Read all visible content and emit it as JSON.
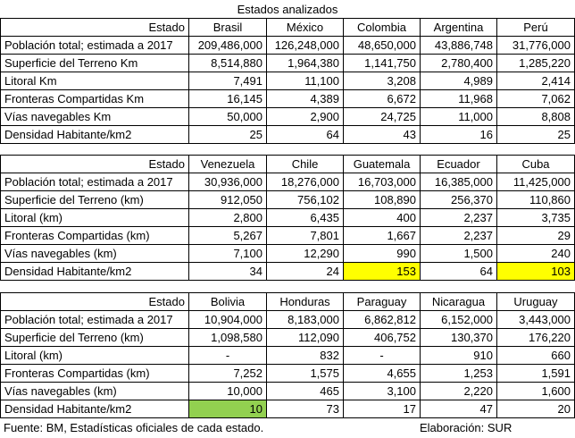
{
  "title": "Estados analizados",
  "blocks": [
    {
      "state_label": "Estado",
      "countries": [
        "Brasil",
        "México",
        "Colombia",
        "Argentina",
        "Perú"
      ],
      "rows": [
        {
          "label": "Población total; estimada a 2017",
          "values": [
            "209,486,000",
            "126,248,000",
            "48,650,000",
            "43,886,748",
            "31,776,000"
          ]
        },
        {
          "label": "Superficie del Terreno Km",
          "values": [
            "8,514,880",
            "1,964,380",
            "1,141,750",
            "2,780,400",
            "1,285,220"
          ]
        },
        {
          "label": "Litoral Km",
          "values": [
            "7,491",
            "11,100",
            "3,208",
            "4,989",
            "2,414"
          ]
        },
        {
          "label": "Fronteras Compartidas Km",
          "values": [
            "16,145",
            "4,389",
            "6,672",
            "11,968",
            "7,062"
          ]
        },
        {
          "label": "Vías navegables Km",
          "values": [
            "50,000",
            "2,900",
            "24,725",
            "11,000",
            "8,808"
          ]
        },
        {
          "label": "Densidad Habitante/km2",
          "values": [
            "25",
            "64",
            "43",
            "16",
            "25"
          ]
        }
      ]
    },
    {
      "state_label": "Estado",
      "countries": [
        "Venezuela",
        "Chile",
        "Guatemala",
        "Ecuador",
        "Cuba"
      ],
      "rows": [
        {
          "label": "Población total; estimada a 2017",
          "values": [
            "30,936,000",
            "18,276,000",
            "16,703,000",
            "16,385,000",
            "11,425,000"
          ]
        },
        {
          "label": "Superficie del Terreno (km)",
          "values": [
            "912,050",
            "756,102",
            "108,890",
            "256,370",
            "110,860"
          ]
        },
        {
          "label": "Litoral (km)",
          "values": [
            "2,800",
            "6,435",
            "400",
            "2,237",
            "3,735"
          ]
        },
        {
          "label": "Fronteras Compartidas (km)",
          "values": [
            "5,267",
            "7,801",
            "1,667",
            "2,237",
            "29"
          ]
        },
        {
          "label": "Vías navegables (km)",
          "values": [
            "7,100",
            "12,290",
            "990",
            "1,500",
            "240"
          ]
        },
        {
          "label": "Densidad Habitante/km2",
          "values": [
            "34",
            "24",
            "153",
            "64",
            "103"
          ]
        }
      ]
    },
    {
      "state_label": "Estado",
      "countries": [
        "Bolivia",
        "Honduras",
        "Paraguay",
        "Nicaragua",
        "Uruguay"
      ],
      "rows": [
        {
          "label": "Población total; estimada a 2017",
          "values": [
            "10,904,000",
            "8,183,000",
            "6,862,812",
            "6,152,000",
            "3,443,000"
          ]
        },
        {
          "label": "Superficie del Terreno (km)",
          "values": [
            "1,098,580",
            "112,090",
            "406,752",
            "130,370",
            "176,220"
          ]
        },
        {
          "label": "Litoral (km)",
          "values": [
            "-",
            "832",
            "-",
            "910",
            "660"
          ]
        },
        {
          "label": "Fronteras Compartidas (km)",
          "values": [
            "7,252",
            "1,575",
            "4,655",
            "1,253",
            "1,591"
          ]
        },
        {
          "label": "Vías navegables (km)",
          "values": [
            "10,000",
            "465",
            "3,100",
            "2,220",
            "1,600"
          ]
        },
        {
          "label": "Densidad Habitante/km2",
          "values": [
            "10",
            "73",
            "17",
            "47",
            "20"
          ]
        }
      ]
    }
  ],
  "highlight_colors": {
    "yellow": "#ffff00",
    "green": "#92d050"
  },
  "footer": {
    "source": "Fuente: BM, Estadísticas oficiales de cada estado.",
    "elaboration": "Elaboración: SUR"
  }
}
